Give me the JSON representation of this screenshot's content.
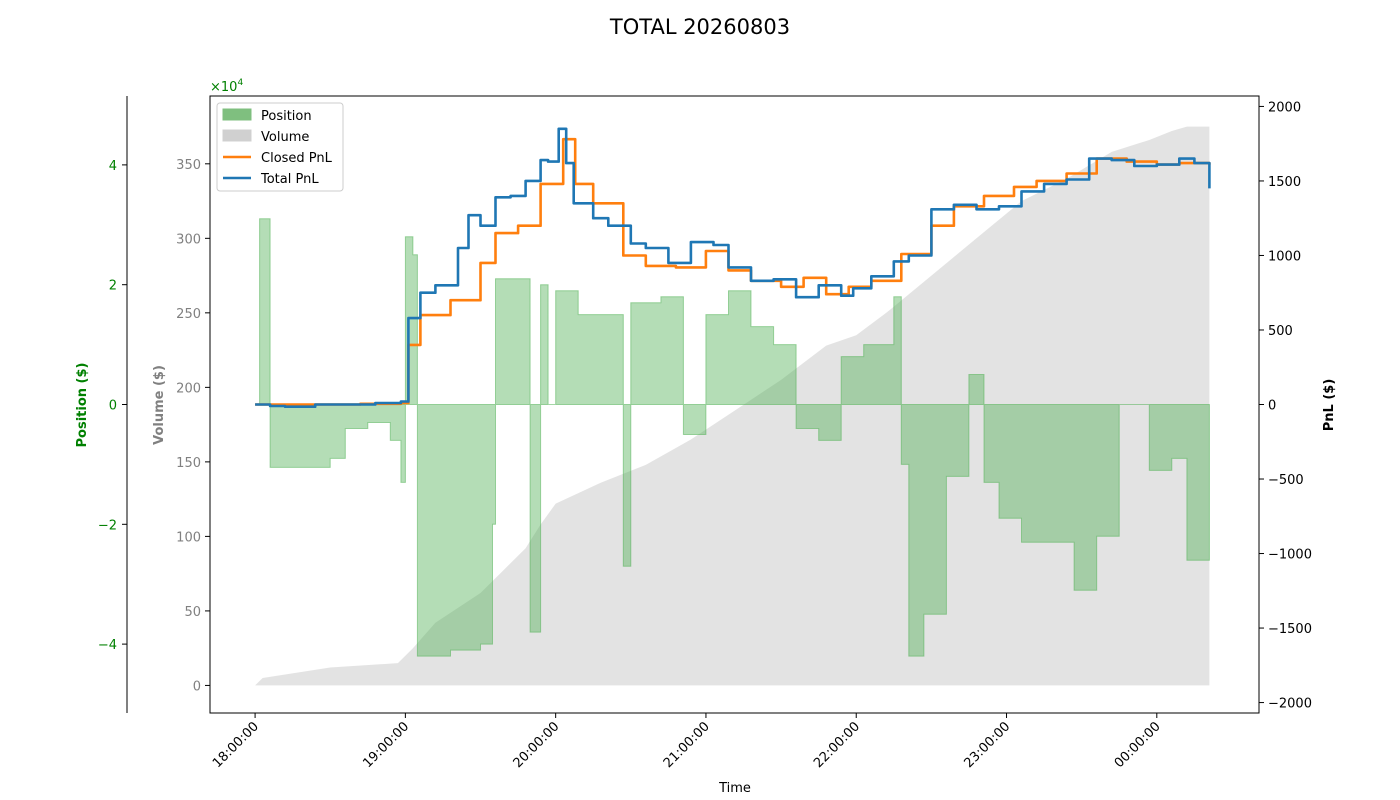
{
  "chart_data": {
    "type": "line",
    "title": "TOTAL 20260803",
    "xlabel": "Time",
    "x_ticks": [
      "18:00:00",
      "19:00:00",
      "20:00:00",
      "21:00:00",
      "22:00:00",
      "23:00:00",
      "00:00:00"
    ],
    "x_range_hours": [
      17.7,
      24.68
    ],
    "axes": {
      "position": {
        "label": "Position ($)",
        "multiplier": "×10",
        "exponent": "4",
        "ticks": [
          {
            "value": 4,
            "label": "4"
          },
          {
            "value": 2,
            "label": "2"
          },
          {
            "value": 0,
            "label": "0"
          },
          {
            "value": -2,
            "label": "−2"
          },
          {
            "value": -4,
            "label": "−4"
          }
        ],
        "range": [
          -5.15,
          5.15
        ],
        "color": "#008000"
      },
      "volume": {
        "label": "Volume ($)",
        "ticks": [
          0,
          50,
          100,
          150,
          200,
          250,
          300,
          350
        ],
        "range": [
          -18.5,
          395.5
        ],
        "color": "#808080"
      },
      "pnl": {
        "label": "PnL ($)",
        "ticks": [
          {
            "value": 2000,
            "label": "2000"
          },
          {
            "value": 1500,
            "label": "1500"
          },
          {
            "value": 1000,
            "label": "1000"
          },
          {
            "value": 500,
            "label": "500"
          },
          {
            "value": 0,
            "label": "0"
          },
          {
            "value": -500,
            "label": "−500"
          },
          {
            "value": -1000,
            "label": "−1000"
          },
          {
            "value": -1500,
            "label": "−1500"
          },
          {
            "value": -2000,
            "label": "−2000"
          }
        ],
        "range": [
          -2070,
          2070
        ],
        "color": "#000000"
      }
    },
    "legend": {
      "placement": "upper-left",
      "entries": [
        {
          "name": "Position",
          "color": "#7fbf7f",
          "kind": "patch"
        },
        {
          "name": "Volume",
          "color": "#d0d0d0",
          "kind": "patch"
        },
        {
          "name": "Closed PnL",
          "color": "#ff7f0e",
          "kind": "line"
        },
        {
          "name": "Total PnL",
          "color": "#1f77b4",
          "kind": "line"
        }
      ]
    },
    "series": [
      {
        "name": "Position",
        "axis": "position",
        "color": "#7fbf7f",
        "x": [
          18.0,
          18.03,
          18.08,
          18.1,
          18.5,
          18.6,
          18.75,
          18.9,
          18.97,
          19.0,
          19.05,
          19.08,
          19.3,
          19.5,
          19.58,
          19.6,
          19.75,
          19.83,
          19.9,
          19.95,
          20.0,
          20.15,
          20.45,
          20.5,
          20.7,
          20.85,
          21.0,
          21.15,
          21.3,
          21.45,
          21.6,
          21.75,
          21.9,
          22.05,
          22.25,
          22.3,
          22.35,
          22.45,
          22.6,
          22.75,
          22.85,
          22.95,
          23.1,
          23.3,
          23.45,
          23.6,
          23.75,
          23.95,
          24.1,
          24.2,
          24.35
        ],
        "values": [
          0,
          3.1,
          3.1,
          -1.05,
          -0.9,
          -0.4,
          -0.3,
          -0.6,
          -1.3,
          2.8,
          2.5,
          -4.2,
          -4.1,
          -4.0,
          -2.0,
          2.1,
          2.1,
          -3.8,
          2.0,
          0,
          1.9,
          1.5,
          -2.7,
          1.7,
          1.8,
          -0.5,
          1.5,
          1.9,
          1.3,
          1.0,
          -0.4,
          -0.6,
          0.8,
          1.0,
          1.8,
          -1.0,
          -4.2,
          -3.5,
          -1.2,
          0.5,
          -1.3,
          -1.9,
          -2.3,
          -2.3,
          -3.1,
          -2.2,
          0,
          -1.1,
          -0.9,
          -2.6,
          -1.7
        ]
      },
      {
        "name": "Volume",
        "axis": "volume",
        "color": "#d0d0d0",
        "x": [
          18.0,
          18.05,
          18.5,
          18.95,
          19.05,
          19.2,
          19.5,
          19.8,
          19.9,
          20.0,
          20.3,
          20.6,
          20.9,
          21.2,
          21.5,
          21.8,
          22.0,
          22.2,
          22.5,
          22.8,
          23.1,
          23.4,
          23.7,
          23.95,
          24.1,
          24.2,
          24.35
        ],
        "values": [
          0,
          5,
          12,
          15,
          25,
          42,
          62,
          92,
          108,
          122,
          136,
          148,
          165,
          185,
          205,
          228,
          235,
          250,
          275,
          300,
          325,
          340,
          358,
          366,
          372,
          375,
          375
        ]
      },
      {
        "name": "Closed PnL",
        "axis": "pnl",
        "color": "#ff7f0e",
        "x": [
          18.0,
          18.3,
          18.7,
          18.97,
          19.02,
          19.1,
          19.3,
          19.5,
          19.6,
          19.75,
          19.9,
          20.05,
          20.13,
          20.25,
          20.45,
          20.6,
          20.8,
          21.0,
          21.15,
          21.3,
          21.5,
          21.65,
          21.8,
          21.95,
          22.1,
          22.3,
          22.5,
          22.65,
          22.85,
          23.05,
          23.2,
          23.4,
          23.6,
          23.8,
          24.0,
          24.15,
          24.35
        ],
        "values": [
          0,
          0,
          5,
          10,
          400,
          600,
          700,
          950,
          1150,
          1200,
          1480,
          1780,
          1480,
          1350,
          1000,
          930,
          920,
          1030,
          900,
          830,
          790,
          850,
          740,
          790,
          830,
          1010,
          1200,
          1330,
          1400,
          1460,
          1500,
          1550,
          1650,
          1630,
          1610,
          1620,
          1610
        ]
      },
      {
        "name": "Total PnL",
        "axis": "pnl",
        "color": "#1f77b4",
        "x": [
          18.0,
          18.1,
          18.2,
          18.4,
          18.8,
          18.97,
          19.02,
          19.1,
          19.2,
          19.35,
          19.42,
          19.5,
          19.6,
          19.7,
          19.8,
          19.9,
          19.95,
          20.02,
          20.07,
          20.12,
          20.25,
          20.35,
          20.5,
          20.6,
          20.75,
          20.9,
          21.05,
          21.15,
          21.3,
          21.45,
          21.6,
          21.75,
          21.9,
          21.98,
          22.1,
          22.25,
          22.35,
          22.5,
          22.65,
          22.8,
          22.95,
          23.1,
          23.25,
          23.4,
          23.55,
          23.7,
          23.85,
          24.0,
          24.15,
          24.25,
          24.35
        ],
        "values": [
          0,
          -10,
          -15,
          0,
          10,
          20,
          580,
          750,
          800,
          1050,
          1270,
          1200,
          1390,
          1400,
          1500,
          1640,
          1630,
          1850,
          1620,
          1350,
          1250,
          1200,
          1080,
          1050,
          950,
          1090,
          1070,
          920,
          830,
          840,
          720,
          800,
          730,
          780,
          860,
          960,
          1000,
          1310,
          1340,
          1310,
          1330,
          1430,
          1480,
          1510,
          1650,
          1640,
          1600,
          1610,
          1650,
          1620,
          1450
        ]
      }
    ]
  }
}
